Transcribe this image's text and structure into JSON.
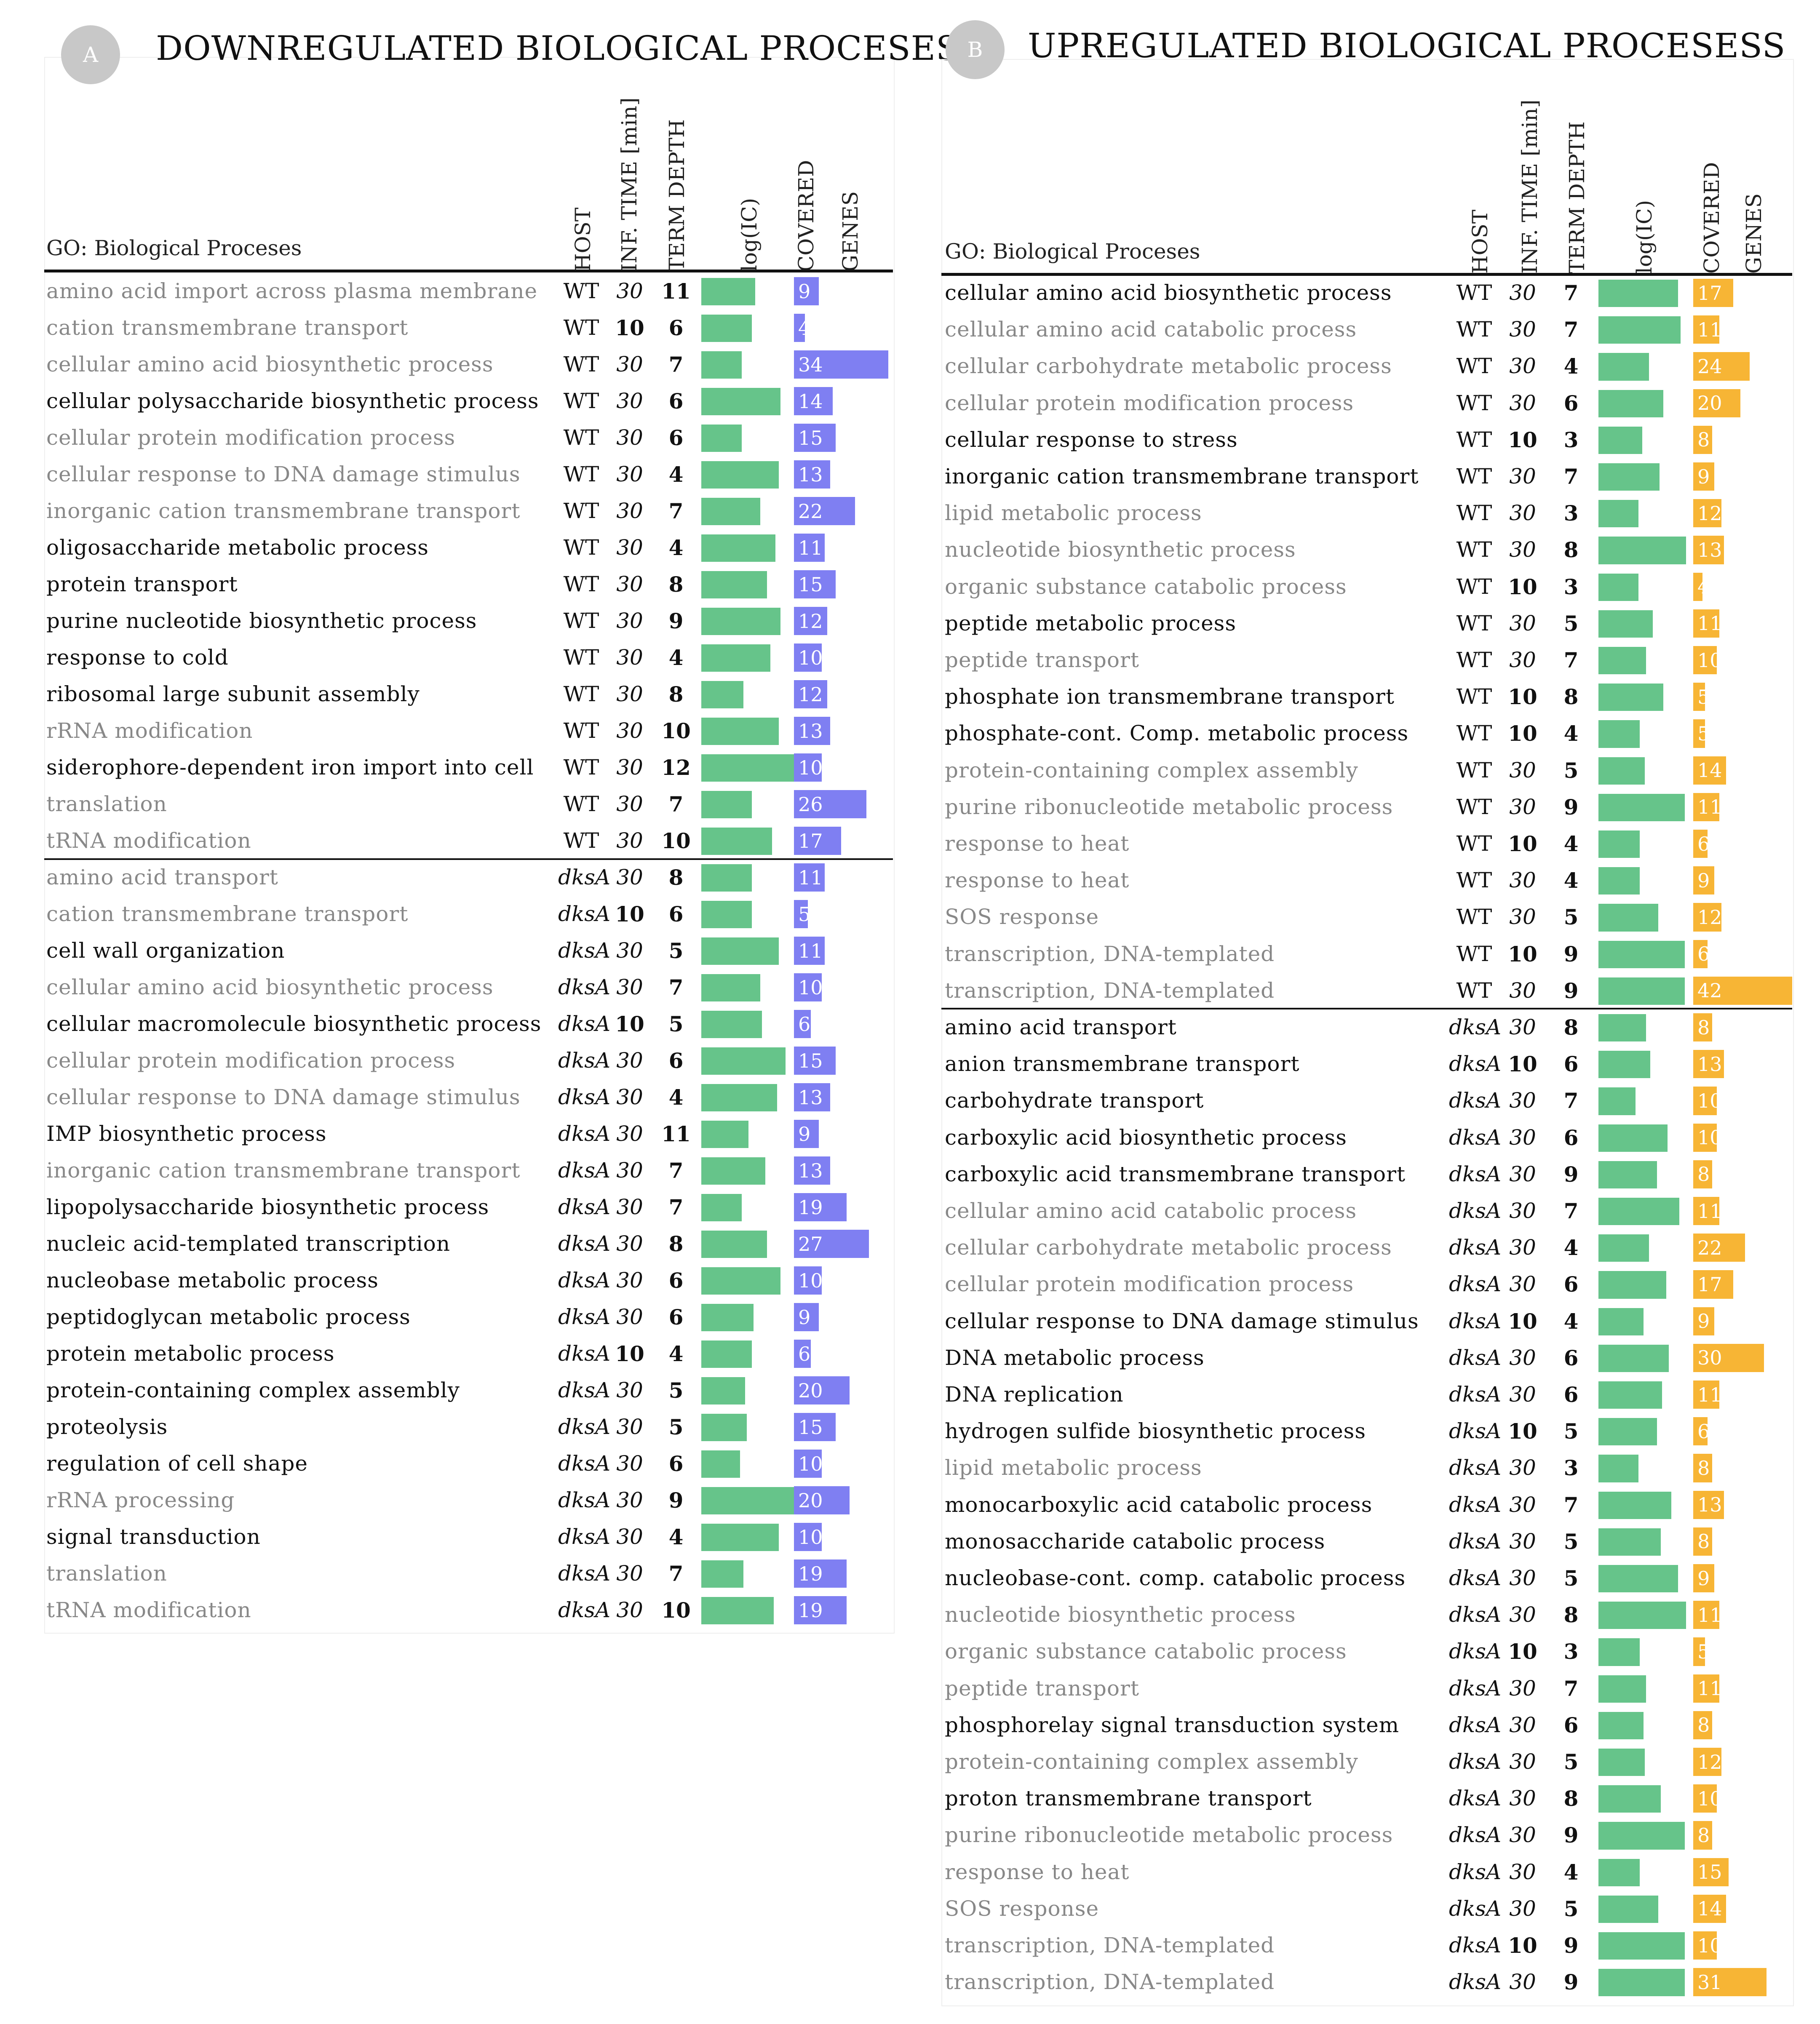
{
  "colors": {
    "ic_bar": "#66c48a",
    "down_genes_bar": "#7f7ff2",
    "up_genes_bar": "#f7b535",
    "badge": "#c8c8c8"
  },
  "chart_data": [
    {
      "type": "table",
      "badge": "A",
      "title": "DOWNREGULATED BIOLOGICAL PROCESESS",
      "headers": {
        "go": "GO: Biological Proceses",
        "host": "HOST",
        "time": "INF. TIME [min]",
        "depth": "TERM DEPTH",
        "ic": "log(IC)",
        "covered": "COVERED",
        "genes": "GENES"
      },
      "columns": [
        "term",
        "host",
        "inf_time_min",
        "term_depth",
        "log_ic",
        "covered_genes"
      ],
      "log_ic_axis": [
        0,
        7
      ],
      "genes_axis": [
        0,
        34
      ],
      "rows": [
        {
          "term": "amino acid import across plasma membrane",
          "bold": false,
          "host": "WT",
          "time": "30",
          "depth": "11",
          "ic": 3.2,
          "genes": 9
        },
        {
          "term": "cation transmembrane transport",
          "bold": false,
          "host": "WT",
          "time": "10",
          "depth": "6",
          "ic": 3.0,
          "genes": 4
        },
        {
          "term": "cellular amino acid biosynthetic process",
          "bold": false,
          "host": "WT",
          "time": "30",
          "depth": "7",
          "ic": 2.4,
          "genes": 34
        },
        {
          "term": "cellular polysaccharide biosynthetic process",
          "bold": true,
          "host": "WT",
          "time": "30",
          "depth": "6",
          "ic": 4.7,
          "genes": 14
        },
        {
          "term": "cellular protein modification process",
          "bold": false,
          "host": "WT",
          "time": "30",
          "depth": "6",
          "ic": 2.4,
          "genes": 15
        },
        {
          "term": "cellular response to DNA damage stimulus",
          "bold": false,
          "host": "WT",
          "time": "30",
          "depth": "4",
          "ic": 4.6,
          "genes": 13
        },
        {
          "term": "inorganic cation transmembrane transport",
          "bold": false,
          "host": "WT",
          "time": "30",
          "depth": "7",
          "ic": 3.5,
          "genes": 22
        },
        {
          "term": "oligosaccharide metabolic process",
          "bold": true,
          "host": "WT",
          "time": "30",
          "depth": "4",
          "ic": 4.4,
          "genes": 11
        },
        {
          "term": "protein transport",
          "bold": true,
          "host": "WT",
          "time": "30",
          "depth": "8",
          "ic": 3.9,
          "genes": 15
        },
        {
          "term": "purine nucleotide biosynthetic process",
          "bold": true,
          "host": "WT",
          "time": "30",
          "depth": "9",
          "ic": 4.7,
          "genes": 12
        },
        {
          "term": "response to cold",
          "bold": true,
          "host": "WT",
          "time": "30",
          "depth": "4",
          "ic": 4.1,
          "genes": 10
        },
        {
          "term": "ribosomal large subunit assembly",
          "bold": true,
          "host": "WT",
          "time": "30",
          "depth": "8",
          "ic": 2.5,
          "genes": 12
        },
        {
          "term": "rRNA modification",
          "bold": false,
          "host": "WT",
          "time": "30",
          "depth": "10",
          "ic": 4.6,
          "genes": 13
        },
        {
          "term": "siderophore-dependent iron import into cell",
          "bold": true,
          "host": "WT",
          "time": "30",
          "depth": "12",
          "ic": 5.6,
          "genes": 10
        },
        {
          "term": "translation",
          "bold": false,
          "host": "WT",
          "time": "30",
          "depth": "7",
          "ic": 3.0,
          "genes": 26
        },
        {
          "term": "tRNA modification",
          "bold": false,
          "host": "WT",
          "time": "30",
          "depth": "10",
          "ic": 4.2,
          "genes": 17
        },
        {
          "term": "amino acid transport",
          "bold": false,
          "host": "dksA",
          "time": "30",
          "depth": "8",
          "ic": 3.0,
          "genes": 11
        },
        {
          "term": "cation transmembrane transport",
          "bold": false,
          "host": "dksA",
          "time": "10",
          "depth": "6",
          "ic": 3.0,
          "genes": 5
        },
        {
          "term": "cell wall organization",
          "bold": true,
          "host": "dksA",
          "time": "30",
          "depth": "5",
          "ic": 4.6,
          "genes": 11
        },
        {
          "term": "cellular amino acid biosynthetic process",
          "bold": false,
          "host": "dksA",
          "time": "30",
          "depth": "7",
          "ic": 3.5,
          "genes": 10
        },
        {
          "term": "cellular macromolecule biosynthetic process",
          "bold": true,
          "host": "dksA",
          "time": "10",
          "depth": "5",
          "ic": 3.6,
          "genes": 6
        },
        {
          "term": "cellular protein modification process",
          "bold": false,
          "host": "dksA",
          "time": "30",
          "depth": "6",
          "ic": 5.0,
          "genes": 15
        },
        {
          "term": "cellular response to DNA damage stimulus",
          "bold": false,
          "host": "dksA",
          "time": "30",
          "depth": "4",
          "ic": 4.5,
          "genes": 13
        },
        {
          "term": "IMP biosynthetic process",
          "bold": true,
          "host": "dksA",
          "time": "30",
          "depth": "11",
          "ic": 2.8,
          "genes": 9
        },
        {
          "term": "inorganic cation transmembrane transport",
          "bold": false,
          "host": "dksA",
          "time": "30",
          "depth": "7",
          "ic": 3.8,
          "genes": 13
        },
        {
          "term": "lipopolysaccharide biosynthetic process",
          "bold": true,
          "host": "dksA",
          "time": "30",
          "depth": "7",
          "ic": 2.4,
          "genes": 19
        },
        {
          "term": "nucleic acid-templated transcription",
          "bold": true,
          "host": "dksA",
          "time": "30",
          "depth": "8",
          "ic": 3.9,
          "genes": 27
        },
        {
          "term": "nucleobase metabolic process",
          "bold": true,
          "host": "dksA",
          "time": "30",
          "depth": "6",
          "ic": 4.7,
          "genes": 10
        },
        {
          "term": "peptidoglycan metabolic process",
          "bold": true,
          "host": "dksA",
          "time": "30",
          "depth": "6",
          "ic": 3.1,
          "genes": 9
        },
        {
          "term": "protein metabolic process",
          "bold": true,
          "host": "dksA",
          "time": "10",
          "depth": "4",
          "ic": 3.0,
          "genes": 6
        },
        {
          "term": "protein-containing complex assembly",
          "bold": true,
          "host": "dksA",
          "time": "30",
          "depth": "5",
          "ic": 2.6,
          "genes": 20
        },
        {
          "term": "proteolysis",
          "bold": true,
          "host": "dksA",
          "time": "30",
          "depth": "5",
          "ic": 2.7,
          "genes": 15
        },
        {
          "term": "regulation of cell shape",
          "bold": true,
          "host": "dksA",
          "time": "30",
          "depth": "6",
          "ic": 2.3,
          "genes": 10
        },
        {
          "term": "rRNA processing",
          "bold": false,
          "host": "dksA",
          "time": "30",
          "depth": "9",
          "ic": 6.6,
          "genes": 20
        },
        {
          "term": "signal transduction",
          "bold": true,
          "host": "dksA",
          "time": "30",
          "depth": "4",
          "ic": 4.6,
          "genes": 10
        },
        {
          "term": "translation",
          "bold": false,
          "host": "dksA",
          "time": "30",
          "depth": "7",
          "ic": 2.5,
          "genes": 19
        },
        {
          "term": "tRNA modification",
          "bold": false,
          "host": "dksA",
          "time": "30",
          "depth": "10",
          "ic": 4.3,
          "genes": 19
        }
      ]
    },
    {
      "type": "table",
      "badge": "B",
      "title": "UPREGULATED BIOLOGICAL PROCESESS",
      "headers": {
        "go": "GO: Biological Proceses",
        "host": "HOST",
        "time": "INF. TIME [min]",
        "depth": "TERM DEPTH",
        "ic": "log(IC)",
        "covered": "COVERED",
        "genes": "GENES"
      },
      "columns": [
        "term",
        "host",
        "inf_time_min",
        "term_depth",
        "log_ic",
        "covered_genes"
      ],
      "log_ic_axis": [
        0,
        7
      ],
      "genes_axis": [
        0,
        42
      ],
      "rows": [
        {
          "term": "cellular amino acid biosynthetic process",
          "bold": true,
          "host": "WT",
          "time": "30",
          "depth": "7",
          "ic": 6.0,
          "genes": 17
        },
        {
          "term": "cellular amino acid catabolic process",
          "bold": false,
          "host": "WT",
          "time": "30",
          "depth": "7",
          "ic": 6.2,
          "genes": 11
        },
        {
          "term": "cellular carbohydrate metabolic process",
          "bold": false,
          "host": "WT",
          "time": "30",
          "depth": "4",
          "ic": 3.8,
          "genes": 24
        },
        {
          "term": "cellular protein modification process",
          "bold": false,
          "host": "WT",
          "time": "30",
          "depth": "6",
          "ic": 4.9,
          "genes": 20
        },
        {
          "term": "cellular response to stress",
          "bold": true,
          "host": "WT",
          "time": "10",
          "depth": "3",
          "ic": 3.3,
          "genes": 8
        },
        {
          "term": "inorganic cation transmembrane transport",
          "bold": true,
          "host": "WT",
          "time": "30",
          "depth": "7",
          "ic": 4.6,
          "genes": 9
        },
        {
          "term": "lipid metabolic process",
          "bold": false,
          "host": "WT",
          "time": "30",
          "depth": "3",
          "ic": 3.0,
          "genes": 12
        },
        {
          "term": "nucleotide biosynthetic process",
          "bold": false,
          "host": "WT",
          "time": "30",
          "depth": "8",
          "ic": 6.6,
          "genes": 13
        },
        {
          "term": "organic substance catabolic process",
          "bold": false,
          "host": "WT",
          "time": "10",
          "depth": "3",
          "ic": 3.0,
          "genes": 4
        },
        {
          "term": "peptide metabolic process",
          "bold": true,
          "host": "WT",
          "time": "30",
          "depth": "5",
          "ic": 4.1,
          "genes": 11
        },
        {
          "term": "peptide transport",
          "bold": false,
          "host": "WT",
          "time": "30",
          "depth": "7",
          "ic": 3.6,
          "genes": 10
        },
        {
          "term": "phosphate ion transmembrane transport",
          "bold": true,
          "host": "WT",
          "time": "10",
          "depth": "8",
          "ic": 4.9,
          "genes": 5
        },
        {
          "term": "phosphate-cont. Comp. metabolic process",
          "bold": true,
          "host": "WT",
          "time": "10",
          "depth": "4",
          "ic": 3.1,
          "genes": 5
        },
        {
          "term": "protein-containing complex assembly",
          "bold": false,
          "host": "WT",
          "time": "30",
          "depth": "5",
          "ic": 3.5,
          "genes": 14
        },
        {
          "term": "purine ribonucleotide metabolic process",
          "bold": false,
          "host": "WT",
          "time": "30",
          "depth": "9",
          "ic": 6.5,
          "genes": 11
        },
        {
          "term": "response to heat",
          "bold": false,
          "host": "WT",
          "time": "10",
          "depth": "4",
          "ic": 3.1,
          "genes": 6
        },
        {
          "term": "response to heat",
          "bold": false,
          "host": "WT",
          "time": "30",
          "depth": "4",
          "ic": 3.1,
          "genes": 9
        },
        {
          "term": "SOS response",
          "bold": false,
          "host": "WT",
          "time": "30",
          "depth": "5",
          "ic": 4.5,
          "genes": 12
        },
        {
          "term": "transcription, DNA-templated",
          "bold": false,
          "host": "WT",
          "time": "10",
          "depth": "9",
          "ic": 6.5,
          "genes": 6
        },
        {
          "term": "transcription, DNA-templated",
          "bold": false,
          "host": "WT",
          "time": "30",
          "depth": "9",
          "ic": 6.5,
          "genes": 42
        },
        {
          "term": "amino acid transport",
          "bold": true,
          "host": "dksA",
          "time": "30",
          "depth": "8",
          "ic": 3.6,
          "genes": 8
        },
        {
          "term": "anion transmembrane transport",
          "bold": true,
          "host": "dksA",
          "time": "10",
          "depth": "6",
          "ic": 3.9,
          "genes": 13
        },
        {
          "term": "carbohydrate transport",
          "bold": true,
          "host": "dksA",
          "time": "30",
          "depth": "7",
          "ic": 2.8,
          "genes": 10
        },
        {
          "term": "carboxylic acid biosynthetic process",
          "bold": true,
          "host": "dksA",
          "time": "30",
          "depth": "6",
          "ic": 5.2,
          "genes": 10
        },
        {
          "term": "carboxylic acid transmembrane transport",
          "bold": true,
          "host": "dksA",
          "time": "30",
          "depth": "9",
          "ic": 4.4,
          "genes": 8
        },
        {
          "term": "cellular amino acid catabolic process",
          "bold": false,
          "host": "dksA",
          "time": "30",
          "depth": "7",
          "ic": 6.1,
          "genes": 11
        },
        {
          "term": "cellular carbohydrate metabolic process",
          "bold": false,
          "host": "dksA",
          "time": "30",
          "depth": "4",
          "ic": 3.8,
          "genes": 22
        },
        {
          "term": "cellular protein modification process",
          "bold": false,
          "host": "dksA",
          "time": "30",
          "depth": "6",
          "ic": 5.1,
          "genes": 17
        },
        {
          "term": "cellular response to DNA damage stimulus",
          "bold": true,
          "host": "dksA",
          "time": "10",
          "depth": "4",
          "ic": 3.4,
          "genes": 9
        },
        {
          "term": "DNA metabolic process",
          "bold": true,
          "host": "dksA",
          "time": "30",
          "depth": "6",
          "ic": 5.3,
          "genes": 30
        },
        {
          "term": "DNA replication",
          "bold": true,
          "host": "dksA",
          "time": "30",
          "depth": "6",
          "ic": 4.8,
          "genes": 11
        },
        {
          "term": "hydrogen sulfide biosynthetic process",
          "bold": true,
          "host": "dksA",
          "time": "10",
          "depth": "5",
          "ic": 4.4,
          "genes": 6
        },
        {
          "term": "lipid metabolic process",
          "bold": false,
          "host": "dksA",
          "time": "30",
          "depth": "3",
          "ic": 3.0,
          "genes": 8
        },
        {
          "term": "monocarboxylic acid catabolic process",
          "bold": true,
          "host": "dksA",
          "time": "30",
          "depth": "7",
          "ic": 5.5,
          "genes": 13
        },
        {
          "term": "monosaccharide catabolic process",
          "bold": true,
          "host": "dksA",
          "time": "30",
          "depth": "5",
          "ic": 4.7,
          "genes": 8
        },
        {
          "term": "nucleobase-cont. comp. catabolic process",
          "bold": true,
          "host": "dksA",
          "time": "30",
          "depth": "5",
          "ic": 6.0,
          "genes": 9
        },
        {
          "term": "nucleotide biosynthetic process",
          "bold": false,
          "host": "dksA",
          "time": "30",
          "depth": "8",
          "ic": 6.6,
          "genes": 11
        },
        {
          "term": "organic substance catabolic process",
          "bold": false,
          "host": "dksA",
          "time": "10",
          "depth": "3",
          "ic": 3.1,
          "genes": 5
        },
        {
          "term": "peptide transport",
          "bold": false,
          "host": "dksA",
          "time": "30",
          "depth": "7",
          "ic": 3.6,
          "genes": 11
        },
        {
          "term": "phosphorelay signal transduction system",
          "bold": true,
          "host": "dksA",
          "time": "30",
          "depth": "6",
          "ic": 3.4,
          "genes": 8
        },
        {
          "term": "protein-containing complex assembly",
          "bold": false,
          "host": "dksA",
          "time": "30",
          "depth": "5",
          "ic": 3.5,
          "genes": 12
        },
        {
          "term": "proton transmembrane transport",
          "bold": true,
          "host": "dksA",
          "time": "30",
          "depth": "8",
          "ic": 4.7,
          "genes": 10
        },
        {
          "term": "purine ribonucleotide metabolic process",
          "bold": false,
          "host": "dksA",
          "time": "30",
          "depth": "9",
          "ic": 6.5,
          "genes": 8
        },
        {
          "term": "response to heat",
          "bold": false,
          "host": "dksA",
          "time": "30",
          "depth": "4",
          "ic": 3.1,
          "genes": 15
        },
        {
          "term": "SOS response",
          "bold": false,
          "host": "dksA",
          "time": "30",
          "depth": "5",
          "ic": 4.5,
          "genes": 14
        },
        {
          "term": "transcription, DNA-templated",
          "bold": false,
          "host": "dksA",
          "time": "10",
          "depth": "9",
          "ic": 6.5,
          "genes": 10
        },
        {
          "term": "transcription, DNA-templated",
          "bold": false,
          "host": "dksA",
          "time": "30",
          "depth": "9",
          "ic": 6.5,
          "genes": 31
        }
      ]
    }
  ]
}
